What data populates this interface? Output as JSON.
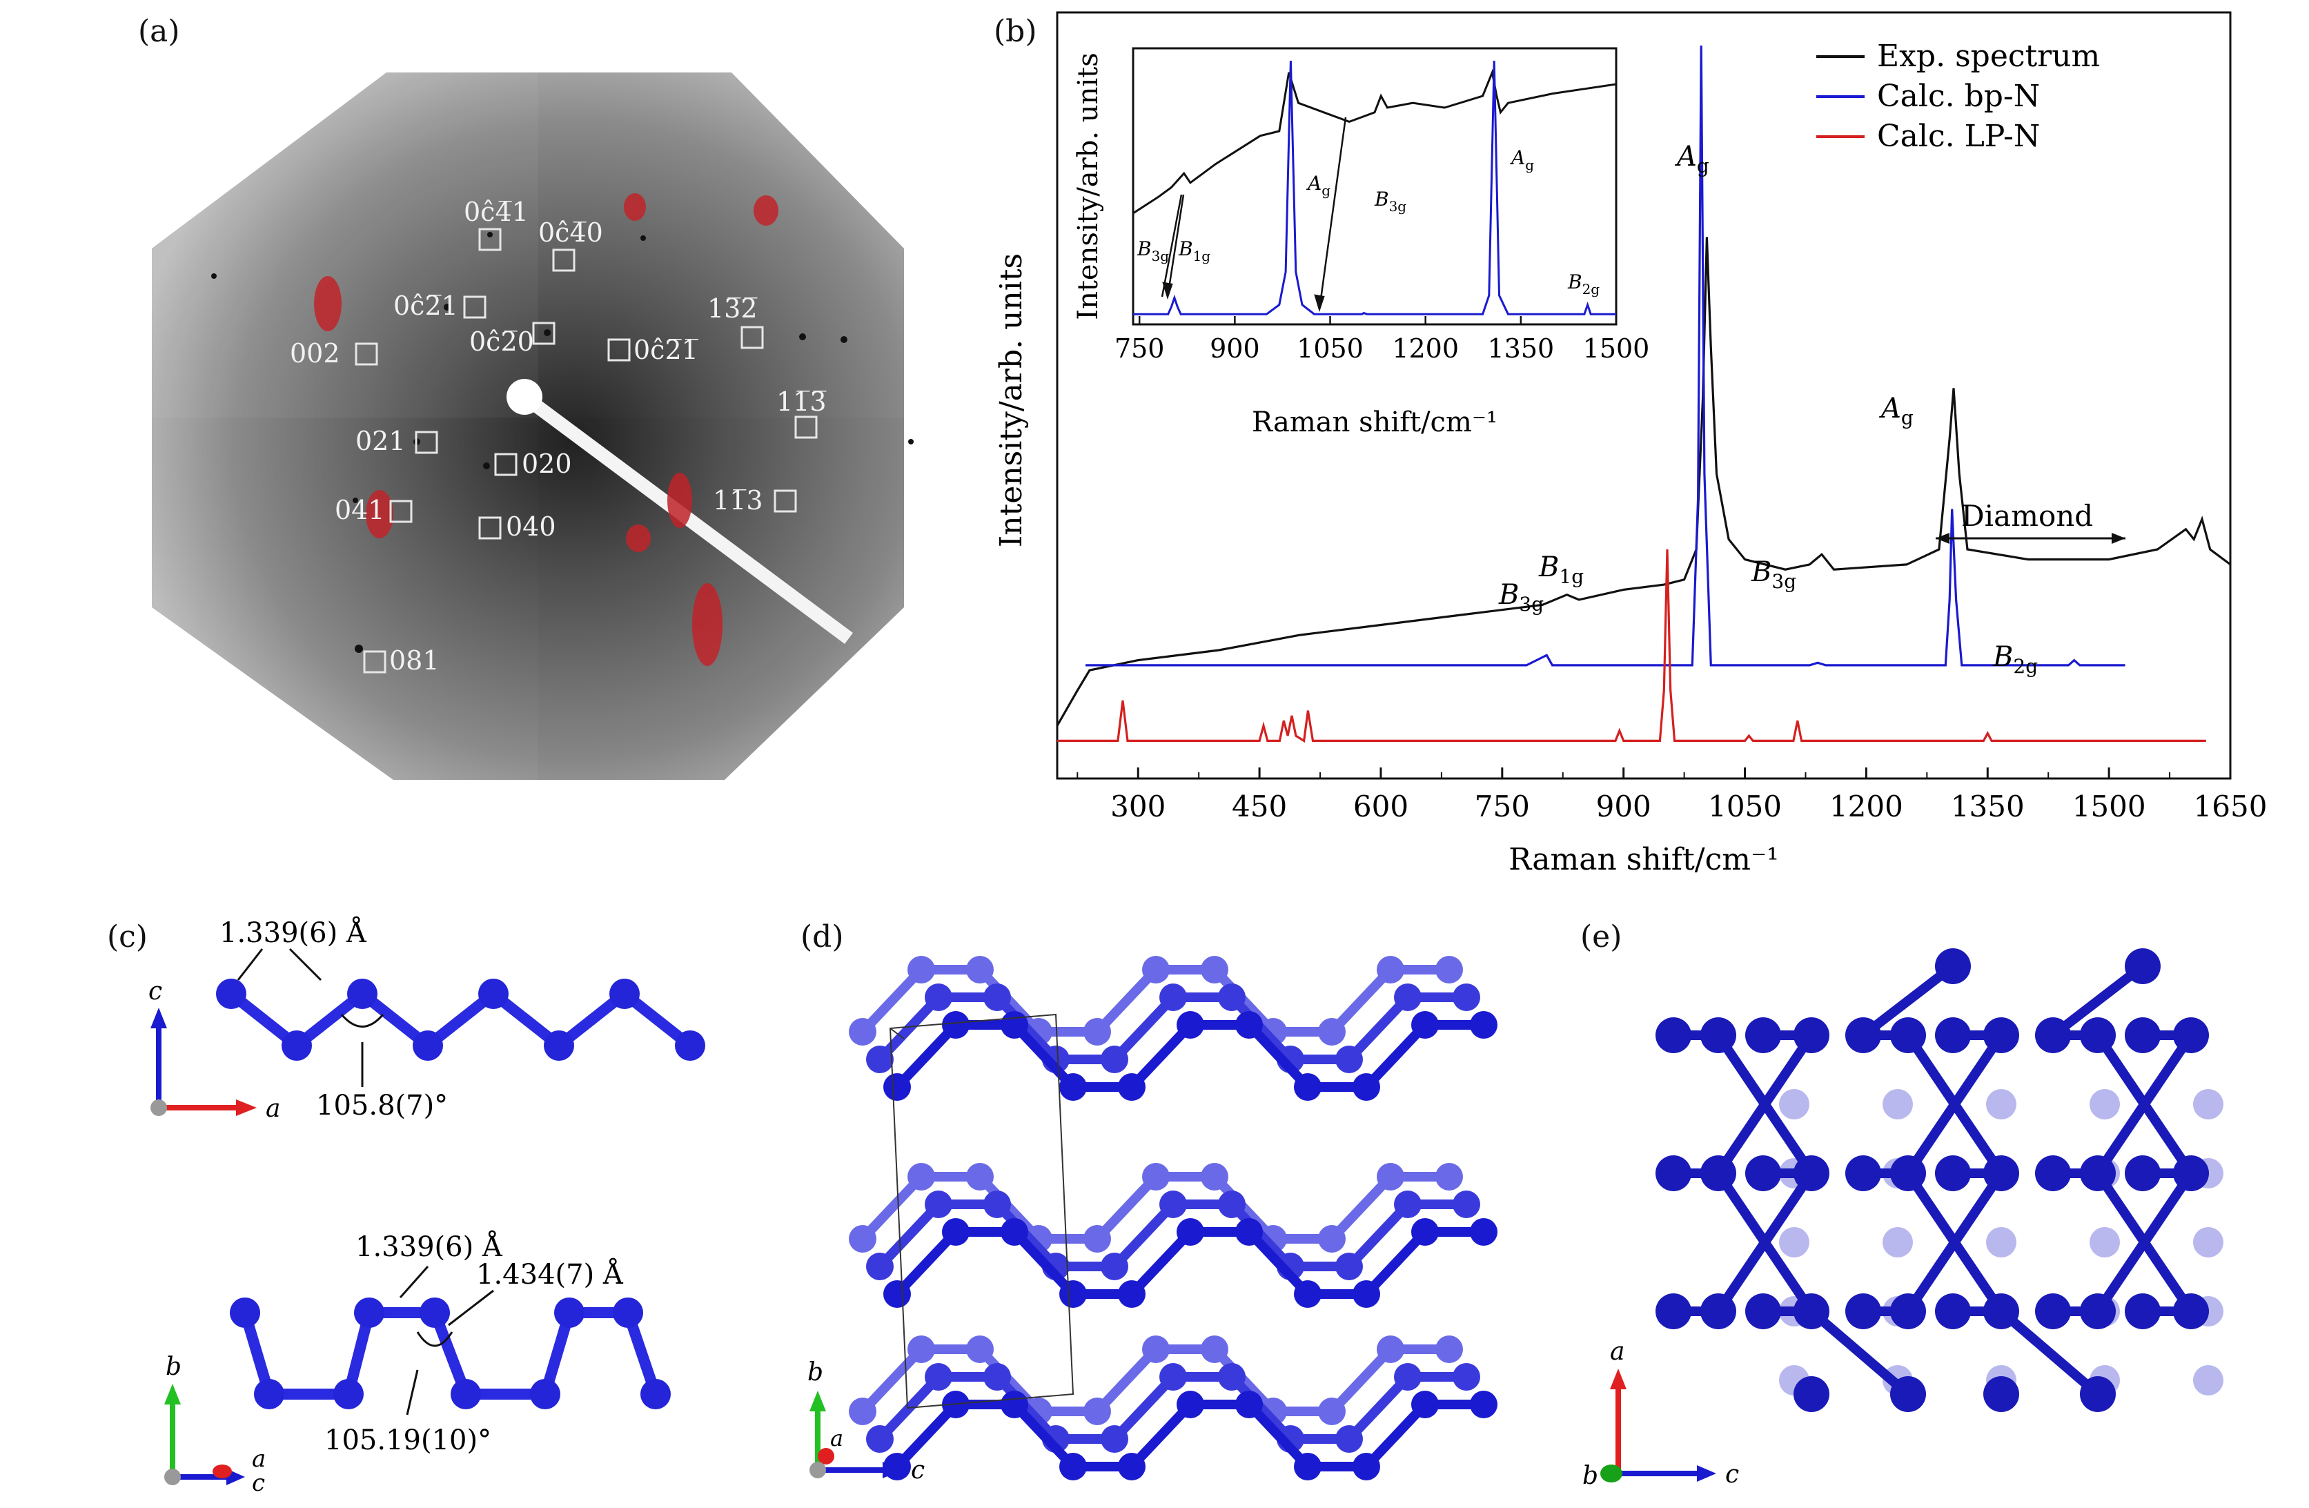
{
  "panels": {
    "a": {
      "label": "(a)",
      "reflections": [
        "0ĉ4̅1",
        "0ĉ4̅0",
        "0ĉ2̅1",
        "0ĉ2̅0",
        "002",
        "0ĉ2̅1̅",
        "13̅2̅",
        "11̅3̅",
        "021",
        "020",
        "041",
        "040",
        "11̅3",
        "081"
      ],
      "colors": {
        "spot": "#c0242a",
        "box": "#e6e6e6"
      }
    },
    "b": {
      "label": "(b)",
      "legend": [
        "Exp. spectrum",
        "Calc. bp-N",
        "Calc. LP-N"
      ],
      "peak_labels": [
        "A",
        "g",
        "A",
        "g",
        "B",
        "1g",
        "B",
        "3g",
        "B",
        "3g",
        "B",
        "2g"
      ],
      "diamond_label": "Diamond",
      "inset_peak_labels": [
        "A",
        "g",
        "A",
        "g",
        "B",
        "3g",
        "B",
        "3g",
        "B",
        "1g",
        "B",
        "2g"
      ]
    },
    "c": {
      "label": "(c)",
      "top_bond": "1.339(6) Å",
      "top_angle": "105.8(7)°",
      "bottom_bond1": "1.339(6) Å",
      "bottom_bond2": "1.434(7) Å",
      "bottom_angle": "105.19(10)°",
      "axes_top": [
        "c",
        "a"
      ],
      "axes_bottom": [
        "b",
        "a",
        "c"
      ]
    },
    "d": {
      "label": "(d)",
      "axes": [
        "b",
        "a",
        "c"
      ]
    },
    "e": {
      "label": "(e)",
      "axes": [
        "a",
        "b",
        "c"
      ]
    }
  },
  "chart_data": [
    {
      "type": "line",
      "xlabel": "Raman shift/cm⁻¹",
      "ylabel": "Intensity/arb. units",
      "xlim": [
        200,
        1650
      ],
      "xticks": [
        300,
        450,
        600,
        750,
        900,
        1050,
        1200,
        1350,
        1500,
        1650
      ],
      "y_ticks_shown": false,
      "legend_position": "top-right",
      "series": [
        {
          "name": "Exp. spectrum",
          "color": "#111111",
          "points": [
            [
              200,
              0.05
            ],
            [
              225,
              0.12
            ],
            [
              240,
              0.16
            ],
            [
              300,
              0.18
            ],
            [
              400,
              0.2
            ],
            [
              500,
              0.23
            ],
            [
              600,
              0.25
            ],
            [
              700,
              0.27
            ],
            [
              800,
              0.29
            ],
            [
              830,
              0.31
            ],
            [
              845,
              0.3
            ],
            [
              900,
              0.32
            ],
            [
              950,
              0.33
            ],
            [
              975,
              0.34
            ],
            [
              990,
              0.4
            ],
            [
              998,
              0.7
            ],
            [
              1003,
              1.02
            ],
            [
              1008,
              0.8
            ],
            [
              1015,
              0.55
            ],
            [
              1030,
              0.42
            ],
            [
              1050,
              0.38
            ],
            [
              1100,
              0.36
            ],
            [
              1130,
              0.37
            ],
            [
              1145,
              0.39
            ],
            [
              1160,
              0.36
            ],
            [
              1250,
              0.37
            ],
            [
              1290,
              0.4
            ],
            [
              1303,
              0.62
            ],
            [
              1308,
              0.72
            ],
            [
              1315,
              0.55
            ],
            [
              1325,
              0.4
            ],
            [
              1400,
              0.38
            ],
            [
              1500,
              0.38
            ],
            [
              1560,
              0.4
            ],
            [
              1595,
              0.44
            ],
            [
              1605,
              0.42
            ],
            [
              1615,
              0.46
            ],
            [
              1625,
              0.4
            ],
            [
              1650,
              0.37
            ]
          ]
        },
        {
          "name": "Calc. bp-N",
          "color": "#1a1ad0",
          "points": [
            [
              235,
              0.17
            ],
            [
              780,
              0.17
            ],
            [
              805,
              0.19
            ],
            [
              812,
              0.17
            ],
            [
              985,
              0.17
            ],
            [
              992,
              0.5
            ],
            [
              996,
              1.4
            ],
            [
              1000,
              0.55
            ],
            [
              1008,
              0.17
            ],
            [
              1130,
              0.17
            ],
            [
              1140,
              0.175
            ],
            [
              1150,
              0.17
            ],
            [
              1298,
              0.17
            ],
            [
              1303,
              0.3
            ],
            [
              1306,
              0.48
            ],
            [
              1311,
              0.3
            ],
            [
              1318,
              0.17
            ],
            [
              1450,
              0.17
            ],
            [
              1457,
              0.18
            ],
            [
              1464,
              0.17
            ],
            [
              1520,
              0.17
            ]
          ]
        },
        {
          "name": "Calc. LP-N",
          "color": "#d52020",
          "points": [
            [
              200,
              0.02
            ],
            [
              275,
              0.02
            ],
            [
              281,
              0.1
            ],
            [
              287,
              0.02
            ],
            [
              450,
              0.02
            ],
            [
              455,
              0.05
            ],
            [
              460,
              0.02
            ],
            [
              475,
              0.02
            ],
            [
              480,
              0.06
            ],
            [
              485,
              0.03
            ],
            [
              490,
              0.07
            ],
            [
              495,
              0.03
            ],
            [
              505,
              0.02
            ],
            [
              510,
              0.08
            ],
            [
              516,
              0.02
            ],
            [
              890,
              0.02
            ],
            [
              895,
              0.04
            ],
            [
              900,
              0.02
            ],
            [
              945,
              0.02
            ],
            [
              950,
              0.12
            ],
            [
              954,
              0.4
            ],
            [
              958,
              0.12
            ],
            [
              963,
              0.02
            ],
            [
              1050,
              0.02
            ],
            [
              1055,
              0.03
            ],
            [
              1060,
              0.02
            ],
            [
              1110,
              0.02
            ],
            [
              1115,
              0.06
            ],
            [
              1120,
              0.02
            ],
            [
              1345,
              0.02
            ],
            [
              1350,
              0.035
            ],
            [
              1355,
              0.02
            ],
            [
              1620,
              0.02
            ]
          ]
        }
      ]
    },
    {
      "type": "line",
      "xlabel": "Raman shift/cm⁻¹",
      "ylabel": "Intensity/arb. units",
      "xlim": [
        740,
        1500
      ],
      "xticks": [
        750,
        900,
        1050,
        1200,
        1350,
        1500
      ],
      "series": [
        {
          "name": "Exp. spectrum",
          "color": "#111111",
          "points": [
            [
              740,
              0.45
            ],
            [
              780,
              0.52
            ],
            [
              800,
              0.56
            ],
            [
              820,
              0.62
            ],
            [
              830,
              0.58
            ],
            [
              870,
              0.66
            ],
            [
              940,
              0.78
            ],
            [
              970,
              0.8
            ],
            [
              985,
              1.05
            ],
            [
              1000,
              0.92
            ],
            [
              1040,
              0.88
            ],
            [
              1080,
              0.84
            ],
            [
              1100,
              0.86
            ],
            [
              1120,
              0.88
            ],
            [
              1130,
              0.95
            ],
            [
              1140,
              0.9
            ],
            [
              1180,
              0.92
            ],
            [
              1230,
              0.9
            ],
            [
              1290,
              0.95
            ],
            [
              1305,
              1.05
            ],
            [
              1312,
              0.95
            ],
            [
              1318,
              0.88
            ],
            [
              1330,
              0.92
            ],
            [
              1400,
              0.96
            ],
            [
              1450,
              0.98
            ],
            [
              1500,
              1.0
            ]
          ]
        },
        {
          "name": "Calc. bp-N",
          "color": "#1a1ad0",
          "points": [
            [
              740,
              0.02
            ],
            [
              795,
              0.02
            ],
            [
              800,
              0.05
            ],
            [
              805,
              0.09
            ],
            [
              810,
              0.05
            ],
            [
              815,
              0.02
            ],
            [
              950,
              0.02
            ],
            [
              970,
              0.06
            ],
            [
              980,
              0.2
            ],
            [
              988,
              1.1
            ],
            [
              996,
              0.2
            ],
            [
              1006,
              0.06
            ],
            [
              1025,
              0.02
            ],
            [
              1100,
              0.02
            ],
            [
              1103,
              0.025
            ],
            [
              1108,
              0.02
            ],
            [
              1290,
              0.02
            ],
            [
              1300,
              0.1
            ],
            [
              1308,
              1.1
            ],
            [
              1316,
              0.1
            ],
            [
              1330,
              0.02
            ],
            [
              1450,
              0.02
            ],
            [
              1455,
              0.06
            ],
            [
              1460,
              0.02
            ],
            [
              1500,
              0.02
            ]
          ]
        }
      ]
    }
  ]
}
